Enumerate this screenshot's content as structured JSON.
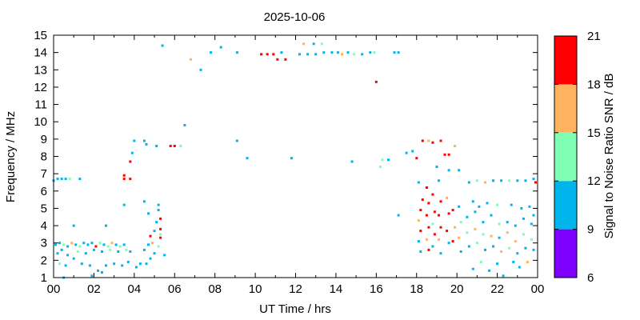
{
  "chart_data": {
    "type": "scatter",
    "title": "2025-10-06",
    "xlabel": "UT Time / hrs",
    "ylabel": "Frequency / MHz",
    "xlim": [
      0,
      24
    ],
    "ylim": [
      1,
      15
    ],
    "x_ticks": [
      "00",
      "02",
      "04",
      "06",
      "08",
      "10",
      "12",
      "14",
      "16",
      "18",
      "20",
      "22",
      "00"
    ],
    "y_ticks": [
      "1",
      "2",
      "3",
      "4",
      "5",
      "6",
      "7",
      "8",
      "9",
      "10",
      "11",
      "12",
      "13",
      "14",
      "15"
    ],
    "grid": false,
    "colorbar": {
      "label": "Signal to Noise Ratio SNR / dB",
      "ticks": [
        "6",
        "9",
        "12",
        "15",
        "18",
        "21"
      ],
      "range": [
        6,
        21
      ],
      "bands": [
        {
          "from": 6,
          "to": 9,
          "color": "#8000ff"
        },
        {
          "from": 9,
          "to": 12,
          "color": "#00b5eb"
        },
        {
          "from": 12,
          "to": 15,
          "color": "#80ffb4"
        },
        {
          "from": 15,
          "to": 18,
          "color": "#ffb360"
        },
        {
          "from": 18,
          "to": 21,
          "color": "#ff0000"
        }
      ]
    },
    "points": [
      [
        0.0,
        6.6,
        10
      ],
      [
        0.2,
        6.7,
        10
      ],
      [
        0.4,
        6.7,
        10
      ],
      [
        0.6,
        6.7,
        10
      ],
      [
        0.8,
        6.7,
        13
      ],
      [
        1.3,
        6.7,
        10
      ],
      [
        0.1,
        2.9,
        10
      ],
      [
        0.3,
        3.0,
        10
      ],
      [
        0.5,
        2.9,
        13
      ],
      [
        0.7,
        2.8,
        10
      ],
      [
        0.9,
        3.0,
        16
      ],
      [
        1.1,
        2.9,
        10
      ],
      [
        1.3,
        2.8,
        13
      ],
      [
        1.5,
        3.0,
        10
      ],
      [
        1.7,
        2.9,
        10
      ],
      [
        1.9,
        3.0,
        10
      ],
      [
        2.1,
        2.8,
        19
      ],
      [
        2.3,
        3.0,
        13
      ],
      [
        2.5,
        2.9,
        10
      ],
      [
        2.7,
        2.8,
        13
      ],
      [
        2.9,
        3.0,
        16
      ],
      [
        3.1,
        2.9,
        10
      ],
      [
        3.3,
        2.8,
        13
      ],
      [
        3.5,
        2.9,
        10
      ],
      [
        0.2,
        2.4,
        10
      ],
      [
        0.4,
        2.6,
        10
      ],
      [
        0.7,
        2.3,
        10
      ],
      [
        1.2,
        2.5,
        13
      ],
      [
        1.6,
        2.4,
        10
      ],
      [
        2.0,
        2.6,
        10
      ],
      [
        2.4,
        2.5,
        10
      ],
      [
        2.8,
        2.6,
        13
      ],
      [
        3.2,
        2.5,
        10
      ],
      [
        3.6,
        2.6,
        13
      ],
      [
        3.8,
        2.5,
        10
      ],
      [
        0.3,
        1.8,
        13
      ],
      [
        0.6,
        1.7,
        10
      ],
      [
        1.0,
        2.1,
        10
      ],
      [
        1.4,
        1.8,
        10
      ],
      [
        1.8,
        1.7,
        10
      ],
      [
        2.2,
        1.4,
        10
      ],
      [
        2.6,
        1.7,
        10
      ],
      [
        3.0,
        1.8,
        10
      ],
      [
        3.4,
        1.7,
        10
      ],
      [
        3.7,
        1.9,
        10
      ],
      [
        4.1,
        1.6,
        10
      ],
      [
        4.3,
        1.8,
        10
      ],
      [
        0.5,
        1.0,
        10
      ],
      [
        1.0,
        4.0,
        10
      ],
      [
        2.6,
        4.0,
        10
      ],
      [
        1.9,
        1.1,
        10
      ],
      [
        2.4,
        1.3,
        10
      ],
      [
        3.5,
        6.9,
        19
      ],
      [
        3.5,
        6.7,
        19
      ],
      [
        3.8,
        6.7,
        19
      ],
      [
        3.8,
        7.7,
        19
      ],
      [
        3.9,
        8.2,
        10
      ],
      [
        4.0,
        8.9,
        10
      ],
      [
        3.5,
        5.2,
        10
      ],
      [
        4.5,
        5.4,
        10
      ],
      [
        4.5,
        8.9,
        10
      ],
      [
        4.6,
        8.7,
        10
      ],
      [
        5.1,
        8.6,
        10
      ],
      [
        5.4,
        14.4,
        10
      ],
      [
        5.8,
        8.6,
        19
      ],
      [
        6.0,
        8.6,
        19
      ],
      [
        6.3,
        8.6,
        13
      ],
      [
        6.5,
        9.8,
        10
      ],
      [
        6.8,
        13.6,
        16
      ],
      [
        4.5,
        2.6,
        10
      ],
      [
        4.7,
        2.9,
        10
      ],
      [
        4.8,
        3.4,
        19
      ],
      [
        4.9,
        3.0,
        16
      ],
      [
        5.0,
        3.7,
        10
      ],
      [
        5.1,
        4.2,
        10
      ],
      [
        5.2,
        4.9,
        10
      ],
      [
        5.3,
        4.4,
        19
      ],
      [
        5.3,
        3.3,
        19
      ],
      [
        5.2,
        2.8,
        13
      ],
      [
        5.0,
        2.4,
        10
      ],
      [
        4.8,
        2.1,
        10
      ],
      [
        4.6,
        1.8,
        10
      ],
      [
        5.5,
        2.3,
        10
      ],
      [
        4.7,
        4.7,
        10
      ],
      [
        5.2,
        5.2,
        10
      ],
      [
        5.3,
        3.8,
        19
      ],
      [
        5.3,
        3.5,
        13
      ],
      [
        7.3,
        13.0,
        10
      ],
      [
        7.8,
        14.0,
        10
      ],
      [
        8.3,
        14.3,
        10
      ],
      [
        9.1,
        14.0,
        10
      ],
      [
        9.1,
        8.9,
        10
      ],
      [
        9.6,
        7.9,
        10
      ],
      [
        10.3,
        13.9,
        19
      ],
      [
        10.6,
        13.9,
        19
      ],
      [
        10.9,
        13.9,
        19
      ],
      [
        11.1,
        13.6,
        19
      ],
      [
        11.3,
        14.0,
        10
      ],
      [
        11.5,
        13.6,
        19
      ],
      [
        11.8,
        7.9,
        10
      ],
      [
        12.2,
        13.9,
        10
      ],
      [
        12.4,
        14.5,
        16
      ],
      [
        12.6,
        13.9,
        10
      ],
      [
        12.9,
        14.5,
        10
      ],
      [
        13.0,
        13.9,
        10
      ],
      [
        13.3,
        14.5,
        13
      ],
      [
        13.4,
        14.0,
        10
      ],
      [
        13.8,
        14.0,
        10
      ],
      [
        14.1,
        14.0,
        10
      ],
      [
        14.3,
        13.9,
        16
      ],
      [
        14.6,
        14.0,
        10
      ],
      [
        14.9,
        13.9,
        13
      ],
      [
        15.3,
        13.9,
        10
      ],
      [
        15.7,
        14.0,
        10
      ],
      [
        15.9,
        14.0,
        13
      ],
      [
        16.0,
        12.3,
        19
      ],
      [
        16.3,
        7.8,
        13
      ],
      [
        16.2,
        7.4,
        13
      ],
      [
        16.6,
        7.8,
        10
      ],
      [
        16.9,
        14.0,
        10
      ],
      [
        17.1,
        14.0,
        10
      ],
      [
        17.1,
        4.6,
        10
      ],
      [
        14.8,
        7.7,
        10
      ],
      [
        17.5,
        8.2,
        10
      ],
      [
        17.8,
        8.3,
        10
      ],
      [
        18.0,
        7.9,
        19
      ],
      [
        18.3,
        8.9,
        19
      ],
      [
        18.6,
        8.9,
        16
      ],
      [
        18.8,
        8.8,
        19
      ],
      [
        19.2,
        8.9,
        19
      ],
      [
        19.4,
        8.1,
        19
      ],
      [
        19.6,
        8.1,
        19
      ],
      [
        19.9,
        8.6,
        16
      ],
      [
        20.1,
        7.2,
        10
      ],
      [
        19.6,
        7.2,
        10
      ],
      [
        19.0,
        7.4,
        10
      ],
      [
        18.1,
        6.5,
        10
      ],
      [
        18.3,
        5.5,
        19
      ],
      [
        18.2,
        4.9,
        19
      ],
      [
        18.1,
        4.3,
        16
      ],
      [
        18.2,
        3.7,
        19
      ],
      [
        18.1,
        3.1,
        10
      ],
      [
        18.2,
        2.5,
        10
      ],
      [
        18.5,
        6.2,
        19
      ],
      [
        18.6,
        5.3,
        19
      ],
      [
        18.5,
        4.6,
        19
      ],
      [
        18.6,
        3.9,
        19
      ],
      [
        18.5,
        3.2,
        16
      ],
      [
        18.6,
        2.6,
        19
      ],
      [
        18.8,
        5.8,
        19
      ],
      [
        18.9,
        4.8,
        19
      ],
      [
        18.8,
        4.1,
        13
      ],
      [
        18.9,
        3.5,
        19
      ],
      [
        18.8,
        2.8,
        10
      ],
      [
        19.1,
        6.6,
        10
      ],
      [
        19.2,
        5.4,
        19
      ],
      [
        19.1,
        4.6,
        19
      ],
      [
        19.2,
        3.9,
        19
      ],
      [
        19.1,
        3.2,
        16
      ],
      [
        19.2,
        2.4,
        10
      ],
      [
        19.5,
        5.6,
        16
      ],
      [
        19.6,
        4.7,
        19
      ],
      [
        19.5,
        3.7,
        19
      ],
      [
        19.6,
        3.0,
        10
      ],
      [
        19.8,
        4.9,
        19
      ],
      [
        19.9,
        3.9,
        16
      ],
      [
        19.8,
        3.1,
        19
      ],
      [
        20.1,
        5.1,
        10
      ],
      [
        20.2,
        4.2,
        13
      ],
      [
        20.1,
        3.3,
        16
      ],
      [
        20.2,
        2.5,
        10
      ],
      [
        20.5,
        4.5,
        10
      ],
      [
        20.5,
        3.6,
        13
      ],
      [
        20.6,
        2.8,
        10
      ],
      [
        20.9,
        4.8,
        10
      ],
      [
        20.9,
        3.8,
        16
      ],
      [
        21.0,
        3.0,
        13
      ],
      [
        21.3,
        4.2,
        10
      ],
      [
        21.3,
        3.5,
        13
      ],
      [
        21.4,
        2.6,
        10
      ],
      [
        21.7,
        4.6,
        10
      ],
      [
        21.7,
        3.4,
        16
      ],
      [
        21.8,
        2.8,
        10
      ],
      [
        22.1,
        4.1,
        13
      ],
      [
        22.1,
        3.3,
        10
      ],
      [
        22.2,
        2.5,
        16
      ],
      [
        22.5,
        4.2,
        10
      ],
      [
        22.5,
        3.6,
        16
      ],
      [
        22.6,
        2.7,
        13
      ],
      [
        22.9,
        4.0,
        10
      ],
      [
        22.9,
        3.1,
        16
      ],
      [
        23.0,
        2.4,
        10
      ],
      [
        23.3,
        4.4,
        10
      ],
      [
        23.3,
        3.5,
        13
      ],
      [
        23.4,
        2.7,
        10
      ],
      [
        23.7,
        4.1,
        10
      ],
      [
        23.7,
        3.2,
        13
      ],
      [
        23.8,
        2.6,
        10
      ],
      [
        23.8,
        4.6,
        10
      ],
      [
        23.5,
        1.9,
        16
      ],
      [
        20.6,
        6.5,
        10
      ],
      [
        21.0,
        6.6,
        13
      ],
      [
        21.4,
        6.5,
        16
      ],
      [
        21.8,
        6.6,
        10
      ],
      [
        22.2,
        6.6,
        10
      ],
      [
        22.6,
        6.6,
        13
      ],
      [
        23.0,
        6.6,
        10
      ],
      [
        23.4,
        6.6,
        10
      ],
      [
        23.8,
        6.7,
        10
      ],
      [
        23.9,
        6.5,
        19
      ],
      [
        20.8,
        5.4,
        10
      ],
      [
        21.1,
        5.1,
        10
      ],
      [
        21.5,
        5.3,
        10
      ],
      [
        22.0,
        5.2,
        13
      ],
      [
        22.7,
        5.2,
        10
      ],
      [
        23.2,
        5.0,
        10
      ],
      [
        23.6,
        5.1,
        10
      ],
      [
        21.2,
        1.9,
        13
      ],
      [
        22.0,
        1.8,
        10
      ],
      [
        22.8,
        1.9,
        10
      ],
      [
        23.1,
        1.6,
        10
      ],
      [
        21.6,
        1.4,
        10
      ],
      [
        20.8,
        1.5,
        10
      ],
      [
        22.3,
        1.1,
        10
      ]
    ]
  }
}
